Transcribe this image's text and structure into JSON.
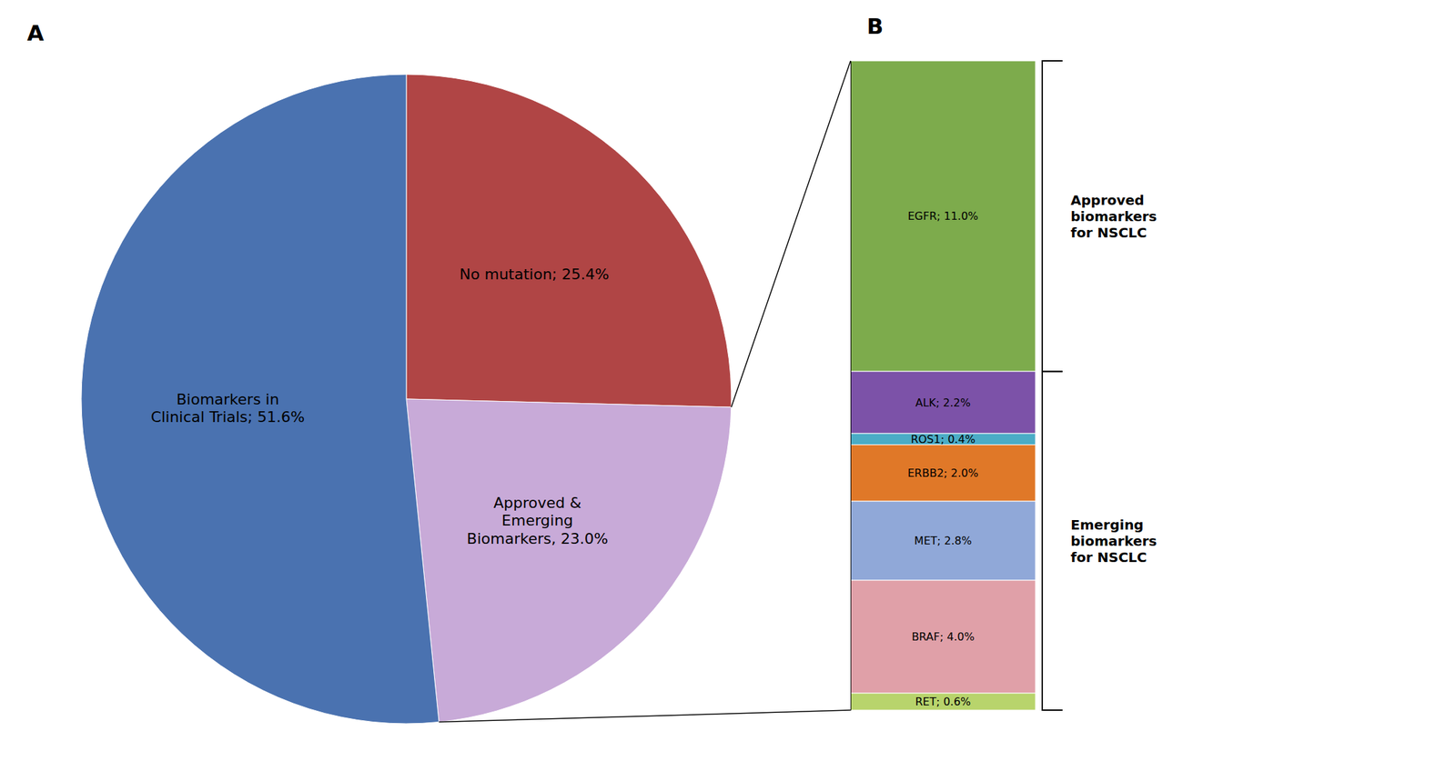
{
  "chart_data": [
    {
      "type": "pie",
      "title": "A",
      "values": [
        25.4,
        23.0,
        51.6
      ],
      "value_labels": [
        "No mutation; 25.4%",
        "Approved &\nEmerging\nBiomarkers, 23.0%",
        "Biomarkers in\nClinical Trials; 51.6%"
      ],
      "colors": [
        "#b04545",
        "#c8aad8",
        "#4a72b0"
      ],
      "data_labels": true
    },
    {
      "type": "bar",
      "title": "B",
      "stacked": true,
      "values": [
        11.0,
        2.2,
        0.4,
        2.0,
        2.8,
        4.0,
        0.6
      ],
      "value_labels": [
        "EGFR; 11.0%",
        "ALK; 2.2%",
        "ROS1; 0.4%",
        "ERBB2; 2.0%",
        "MET; 2.8%",
        "BRAF; 4.0%",
        "RET; 0.6%"
      ],
      "colors": [
        "#7dab4c",
        "#7c52a8",
        "#4bacc6",
        "#e07828",
        "#90a8d8",
        "#e0a0a8",
        "#b8d46c"
      ],
      "data_labels": true,
      "tick_labels": false,
      "ylim": [
        0,
        23.0
      ],
      "annotations": [
        "Approved\nbiomarkers\nfor NSCLC",
        "Emerging\nbiomarkers\nfor NSCLC"
      ]
    }
  ]
}
